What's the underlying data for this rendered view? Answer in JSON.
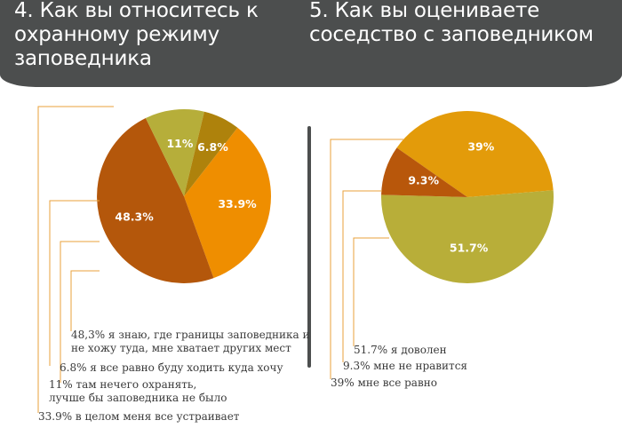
{
  "header": {
    "q4_title": "4. Как вы относитесь к\nохранному режиму\nзаповедника",
    "q5_title": "5. Как вы оцениваете\nсоседство с заповедником"
  },
  "colors": {
    "header_bg": "#4c4e4e",
    "leader_line": "#e9a23b",
    "legend_text": "#3a3a3a"
  },
  "chart_data": [
    {
      "type": "pie",
      "title": "4. Как вы относитесь к охранному режиму заповедника",
      "slices": [
        {
          "label": "33.9%",
          "value": 33.9,
          "color": "#ef8e00",
          "legend": [
            "33.9% в целом меня все устраивает"
          ]
        },
        {
          "label": "48.3%",
          "value": 48.3,
          "color": "#b4570b",
          "legend": [
            "48,3% я знаю, где границы заповедника и",
            "не хожу туда, мне хватает других мест"
          ]
        },
        {
          "label": "11%",
          "value": 11.0,
          "color": "#b6ae3a",
          "legend": [
            "11% там нечего охранять,",
            "лучше бы заповедника не было"
          ]
        },
        {
          "label": "6.8%",
          "value": 6.8,
          "color": "#ae820c",
          "legend": [
            "6.8% я все равно буду ходить куда хочу"
          ]
        }
      ]
    },
    {
      "type": "pie",
      "title": "5. Как вы оцениваете соседство с заповедником",
      "slices": [
        {
          "label": "39%",
          "value": 39.0,
          "color": "#e39b0a",
          "legend": [
            "39% мне все равно"
          ]
        },
        {
          "label": "51.7%",
          "value": 51.7,
          "color": "#b8ae39",
          "legend": [
            "51.7% я доволен"
          ]
        },
        {
          "label": "9.3%",
          "value": 9.3,
          "color": "#b8570b",
          "legend": [
            "9.3% мне не нравится"
          ]
        }
      ]
    }
  ]
}
